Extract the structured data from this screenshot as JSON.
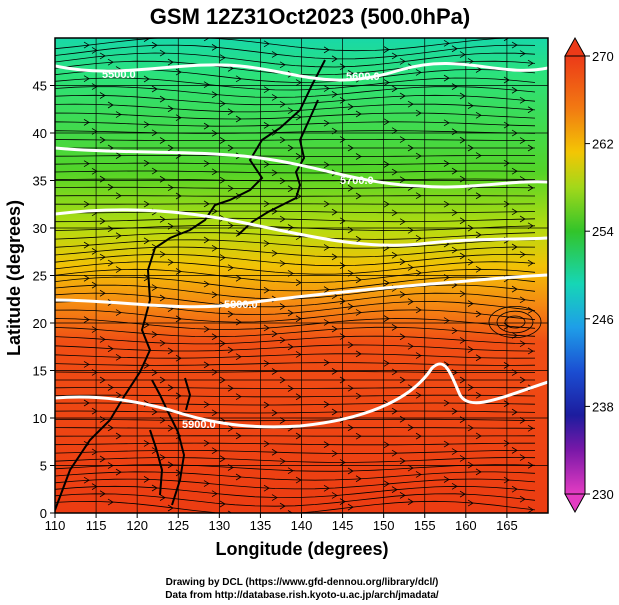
{
  "title": "GSM 12Z31Oct2023 (500.0hPa)",
  "axes": {
    "xlabel": "Longitude (degrees)",
    "ylabel": "Latitude  (degrees)",
    "xlim": [
      110,
      170
    ],
    "ylim": [
      0,
      50
    ],
    "xticks": [
      "110",
      "115",
      "120",
      "125",
      "130",
      "135",
      "140",
      "145",
      "150",
      "155",
      "160",
      "165"
    ],
    "yticks": [
      "0",
      "5",
      "10",
      "15",
      "20",
      "25",
      "30",
      "35",
      "40",
      "45"
    ]
  },
  "colorbar": {
    "labels": [
      "270",
      "262",
      "254",
      "246",
      "238",
      "230"
    ],
    "colors": [
      "#e8401a",
      "#f07a10",
      "#f6c300",
      "#6ad21e",
      "#22c23c",
      "#16d8b8",
      "#1f9fe6",
      "#1a4fd0",
      "#1c1ca0",
      "#7a1aa8",
      "#e23cc0"
    ]
  },
  "contours": [
    {
      "label": "5500.0"
    },
    {
      "label": "5600.0"
    },
    {
      "label": "5700.0"
    },
    {
      "label": "5800.0"
    },
    {
      "label": "5900.0"
    }
  ],
  "credits": {
    "line1": "Drawing by DCL (https://www.gfd-dennou.org/library/dcl/)",
    "line2": "Data from http://database.rish.kyoto-u.ac.jp/arch/jmadata/"
  }
}
